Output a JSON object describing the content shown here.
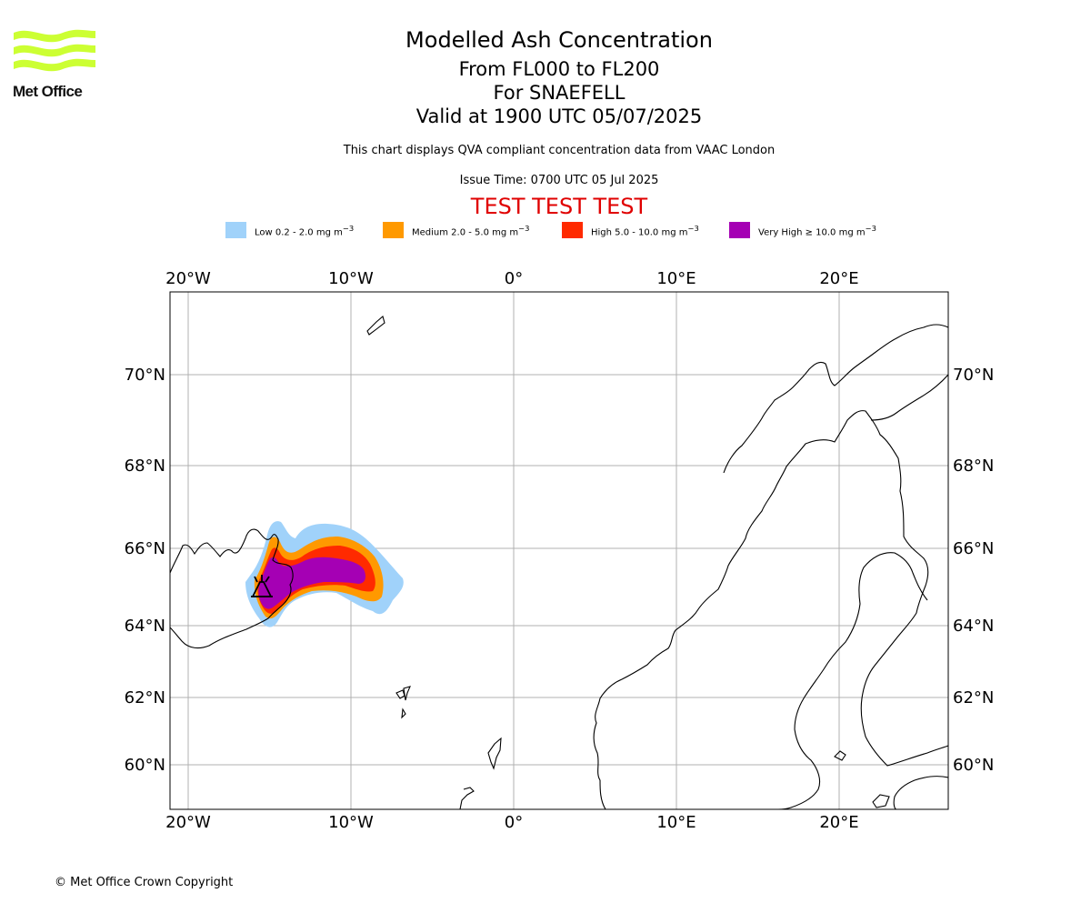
{
  "brand": {
    "name": "Met Office",
    "logo_icon": "met-office-wave-logo",
    "logo_color": "#ccff33"
  },
  "header": {
    "title": "Modelled Ash Concentration",
    "levels": "From FL000 to FL200",
    "volcano": "For SNAEFELL",
    "valid": "Valid at 1900 UTC 05/07/2025",
    "note": "This chart displays QVA compliant concentration data from VAAC London",
    "issue": "Issue Time: 0700 UTC 05 Jul 2025",
    "test_banner": "TEST TEST TEST",
    "test_color": "#e00000"
  },
  "legend": [
    {
      "label": "Low 0.2 - 2.0 mg m",
      "sup": "−3",
      "color": "#a0d2fa"
    },
    {
      "label": "Medium 2.0 - 5.0 mg m",
      "sup": "−3",
      "color": "#ff9900"
    },
    {
      "label": "High 5.0 - 10.0 mg m",
      "sup": "−3",
      "color": "#ff2a00"
    },
    {
      "label": "Very High ≥ 10.0 mg m",
      "sup": "−3",
      "color": "#a500b4"
    }
  ],
  "map": {
    "lon_ticks": [
      "20°W",
      "10°W",
      "0°",
      "10°E",
      "20°E"
    ],
    "lat_ticks": [
      "70°N",
      "68°N",
      "66°N",
      "64°N",
      "62°N",
      "60°N"
    ],
    "volcano_icon": "volcano-icon",
    "grid": true
  },
  "footer": {
    "copyright": "© Met Office Crown Copyright"
  }
}
